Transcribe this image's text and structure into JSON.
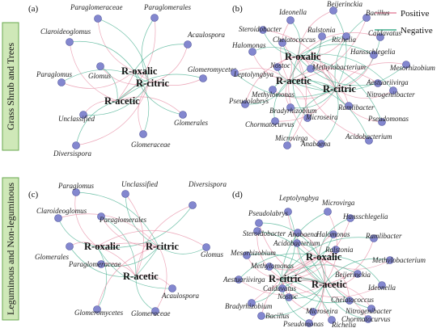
{
  "legend": {
    "positive": "Positive",
    "negative": "Negative"
  },
  "rows": [
    "Grass Shrub and Trees",
    "Leguminous and Non-leguminous"
  ],
  "panels": [
    {
      "label": "(a)",
      "hubs": [
        "R-oxalic",
        "R-citric",
        "R-acetic"
      ],
      "nodes": [
        "Paraglomeraceae",
        "Paraglomerales",
        "Claroideoglomus",
        "Acaulospora",
        "Glomus",
        "Glomeromycetes",
        "Paraglomus",
        "Unclassified",
        "Glomerales",
        "Glomeraceae",
        "Diversispora"
      ]
    },
    {
      "label": "(b)",
      "hubs": [
        "R-oxalic",
        "R-citric",
        "R-acetic"
      ],
      "nodes": [
        "Beijerinckia",
        "Bacillus",
        "Ideonella",
        "Steroidobacter",
        "Ralstonia",
        "Richelia",
        "Caldavatus",
        "Chelatococcus",
        "Halomonas",
        "Hansschlegelia",
        "Mesorhizobium",
        "Nostoc",
        "Methylobacterium",
        "Leptolyngbya",
        "Aestuariivirga",
        "Nitrogeniibacter",
        "Methylomonas",
        "Pseudolabrys",
        "Ramlibacter",
        "Bradyrhizobium",
        "Microseira",
        "Pseudomonas",
        "Chormatocurvus",
        "Acidobacterium",
        "Microvirga",
        "Anabaena"
      ]
    },
    {
      "label": "(c)",
      "hubs": [
        "R-oxalic",
        "R-citric",
        "R-acetic"
      ],
      "nodes": [
        "Paraglomus",
        "Unclassified",
        "Diversispora",
        "Claroideoglomus",
        "Paraglomerales",
        "Glomerales",
        "Glomus",
        "Paraglomeraceae",
        "Acaulospora",
        "Glomeromycetes",
        "Glomeraceae"
      ]
    },
    {
      "label": "(d)",
      "hubs": [
        "R-oxalic",
        "R-citric",
        "R-acetic"
      ],
      "nodes": [
        "Leptolyngbya",
        "Microvirga",
        "Pseudolabrys",
        "Hansschlegelia",
        "Steroidobacter",
        "Anabaena",
        "Halomonas",
        "Ramlibacter",
        "Acidobacterium",
        "Ralstonia",
        "Mesorhizobium",
        "Methylobacterium",
        "Methylomonas",
        "Beijerinckia",
        "Aestuariivirga",
        "Ideonella",
        "Caldavatus",
        "Nostoc",
        "Chelatococcus",
        "Bradyrhizobium",
        "Nitrogenibacter",
        "Microseira",
        "Chormatocurvus",
        "Bacillus",
        "Pseudomonas",
        "Richelia"
      ]
    }
  ]
}
